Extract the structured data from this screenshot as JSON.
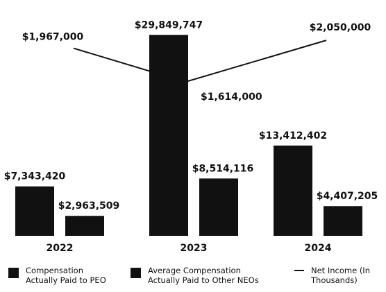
{
  "chart_data": {
    "type": "bar",
    "categories": [
      "2022",
      "2023",
      "2024"
    ],
    "series": [
      {
        "name": "Compensation Actually Paid to PEO",
        "color": "#111111",
        "values": [
          7343420,
          29849747,
          13412402
        ],
        "value_labels": [
          "$7,343,420",
          "$29,849,747",
          "$13,412,402"
        ]
      },
      {
        "name": "Average Compensation Actually Paid to Other NEOs",
        "color": "#111111",
        "values": [
          2963509,
          8514116,
          4407205
        ],
        "value_labels": [
          "$2,963,509",
          "$8,514,116",
          "$4,407,205"
        ]
      },
      {
        "name": "Net Income (In Thousands)",
        "type": "line",
        "axis": "y2",
        "color": "#111111",
        "values": [
          1967000,
          1614000,
          2050000
        ],
        "value_labels": [
          "$1,967,000",
          "$1,614,000",
          "$2,050,000"
        ]
      }
    ],
    "ylim": [
      0,
      34000000
    ],
    "y2lim": [
      0,
      2400000
    ]
  }
}
